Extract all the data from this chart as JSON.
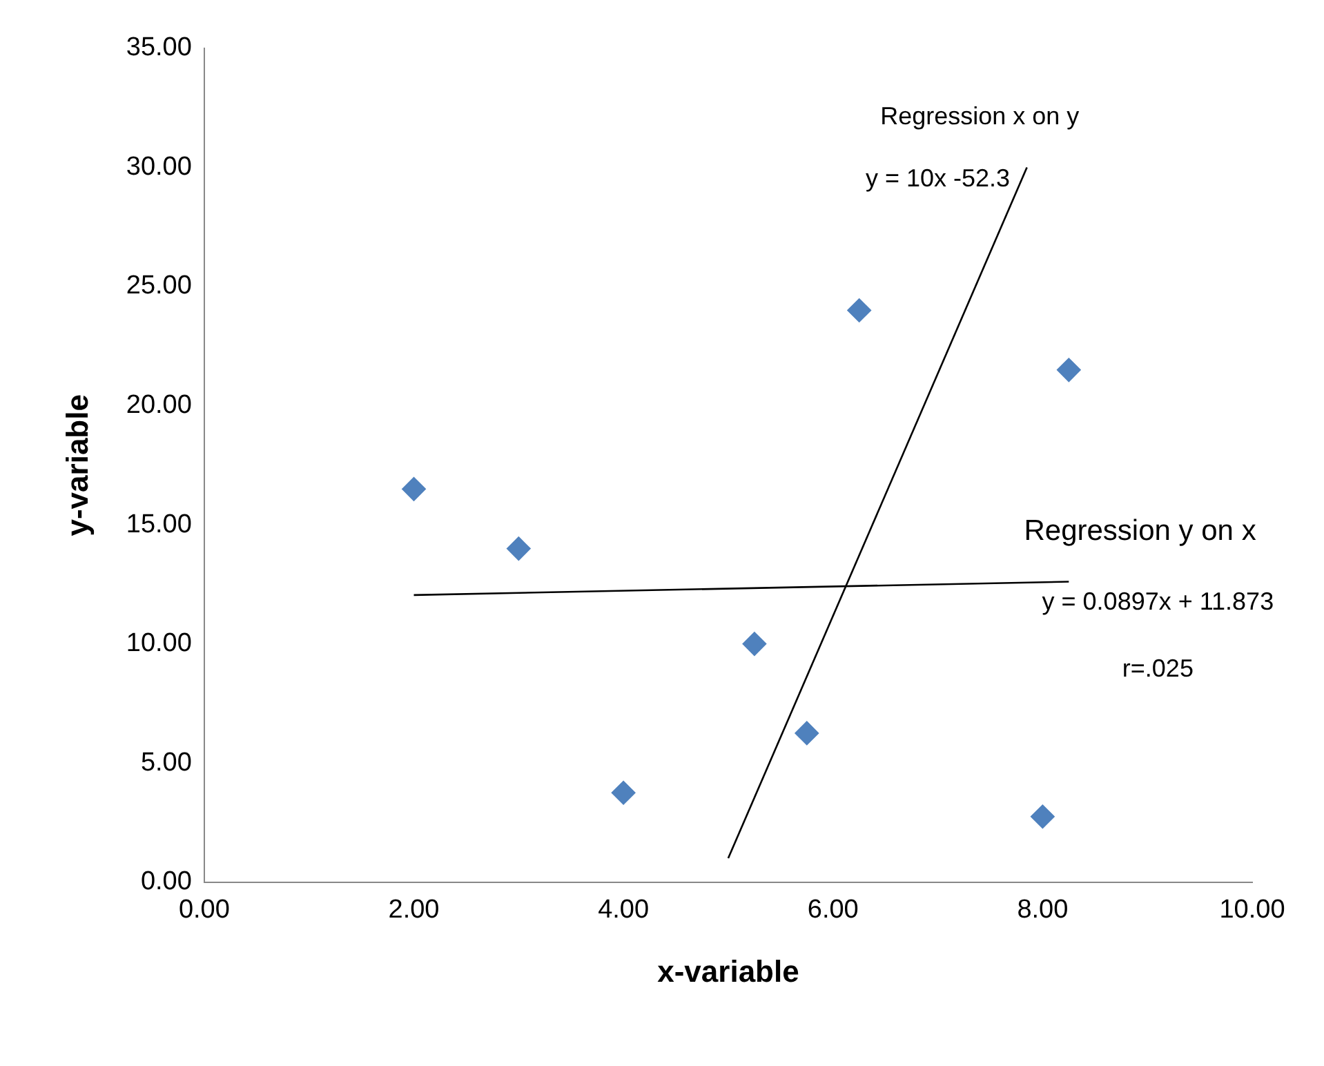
{
  "chart_data": {
    "type": "scatter",
    "xlabel": "x-variable",
    "ylabel": "y-variable",
    "xlim": [
      0,
      10
    ],
    "ylim": [
      0,
      35
    ],
    "xticks": [
      {
        "value": 0,
        "label": "0.00"
      },
      {
        "value": 2,
        "label": "2.00"
      },
      {
        "value": 4,
        "label": "4.00"
      },
      {
        "value": 6,
        "label": "6.00"
      },
      {
        "value": 8,
        "label": "8.00"
      },
      {
        "value": 10,
        "label": "10.00"
      }
    ],
    "yticks": [
      {
        "value": 0,
        "label": "0.00"
      },
      {
        "value": 5,
        "label": "5.00"
      },
      {
        "value": 10,
        "label": "10.00"
      },
      {
        "value": 15,
        "label": "15.00"
      },
      {
        "value": 20,
        "label": "20.00"
      },
      {
        "value": 25,
        "label": "25.00"
      },
      {
        "value": 30,
        "label": "30.00"
      },
      {
        "value": 35,
        "label": "35.00"
      }
    ],
    "grid": false,
    "legend": false,
    "marker": "diamond",
    "series": [
      {
        "color": "#4f81bd",
        "x": [
          2,
          3,
          4,
          5.25,
          5.75,
          6.25,
          8.25,
          8
        ],
        "values": [
          16.5,
          14,
          3.75,
          10,
          6.25,
          24,
          21.5,
          2.75
        ]
      },
      {
        "type": "line",
        "color": "#000000",
        "marker": "none",
        "line_style": "solid",
        "x": [
          2,
          8.25
        ],
        "values": [
          12.05,
          12.61
        ]
      },
      {
        "type": "line",
        "color": "#000000",
        "marker": "none",
        "line_style": "solid",
        "x": [
          5,
          7.85
        ],
        "values": [
          1,
          30
        ]
      }
    ],
    "annotations": [
      "Regression x on y",
      "y = 10x -52.3",
      "Regression y on x",
      "y = 0.0897x + 11.873",
      "r=.025"
    ]
  }
}
